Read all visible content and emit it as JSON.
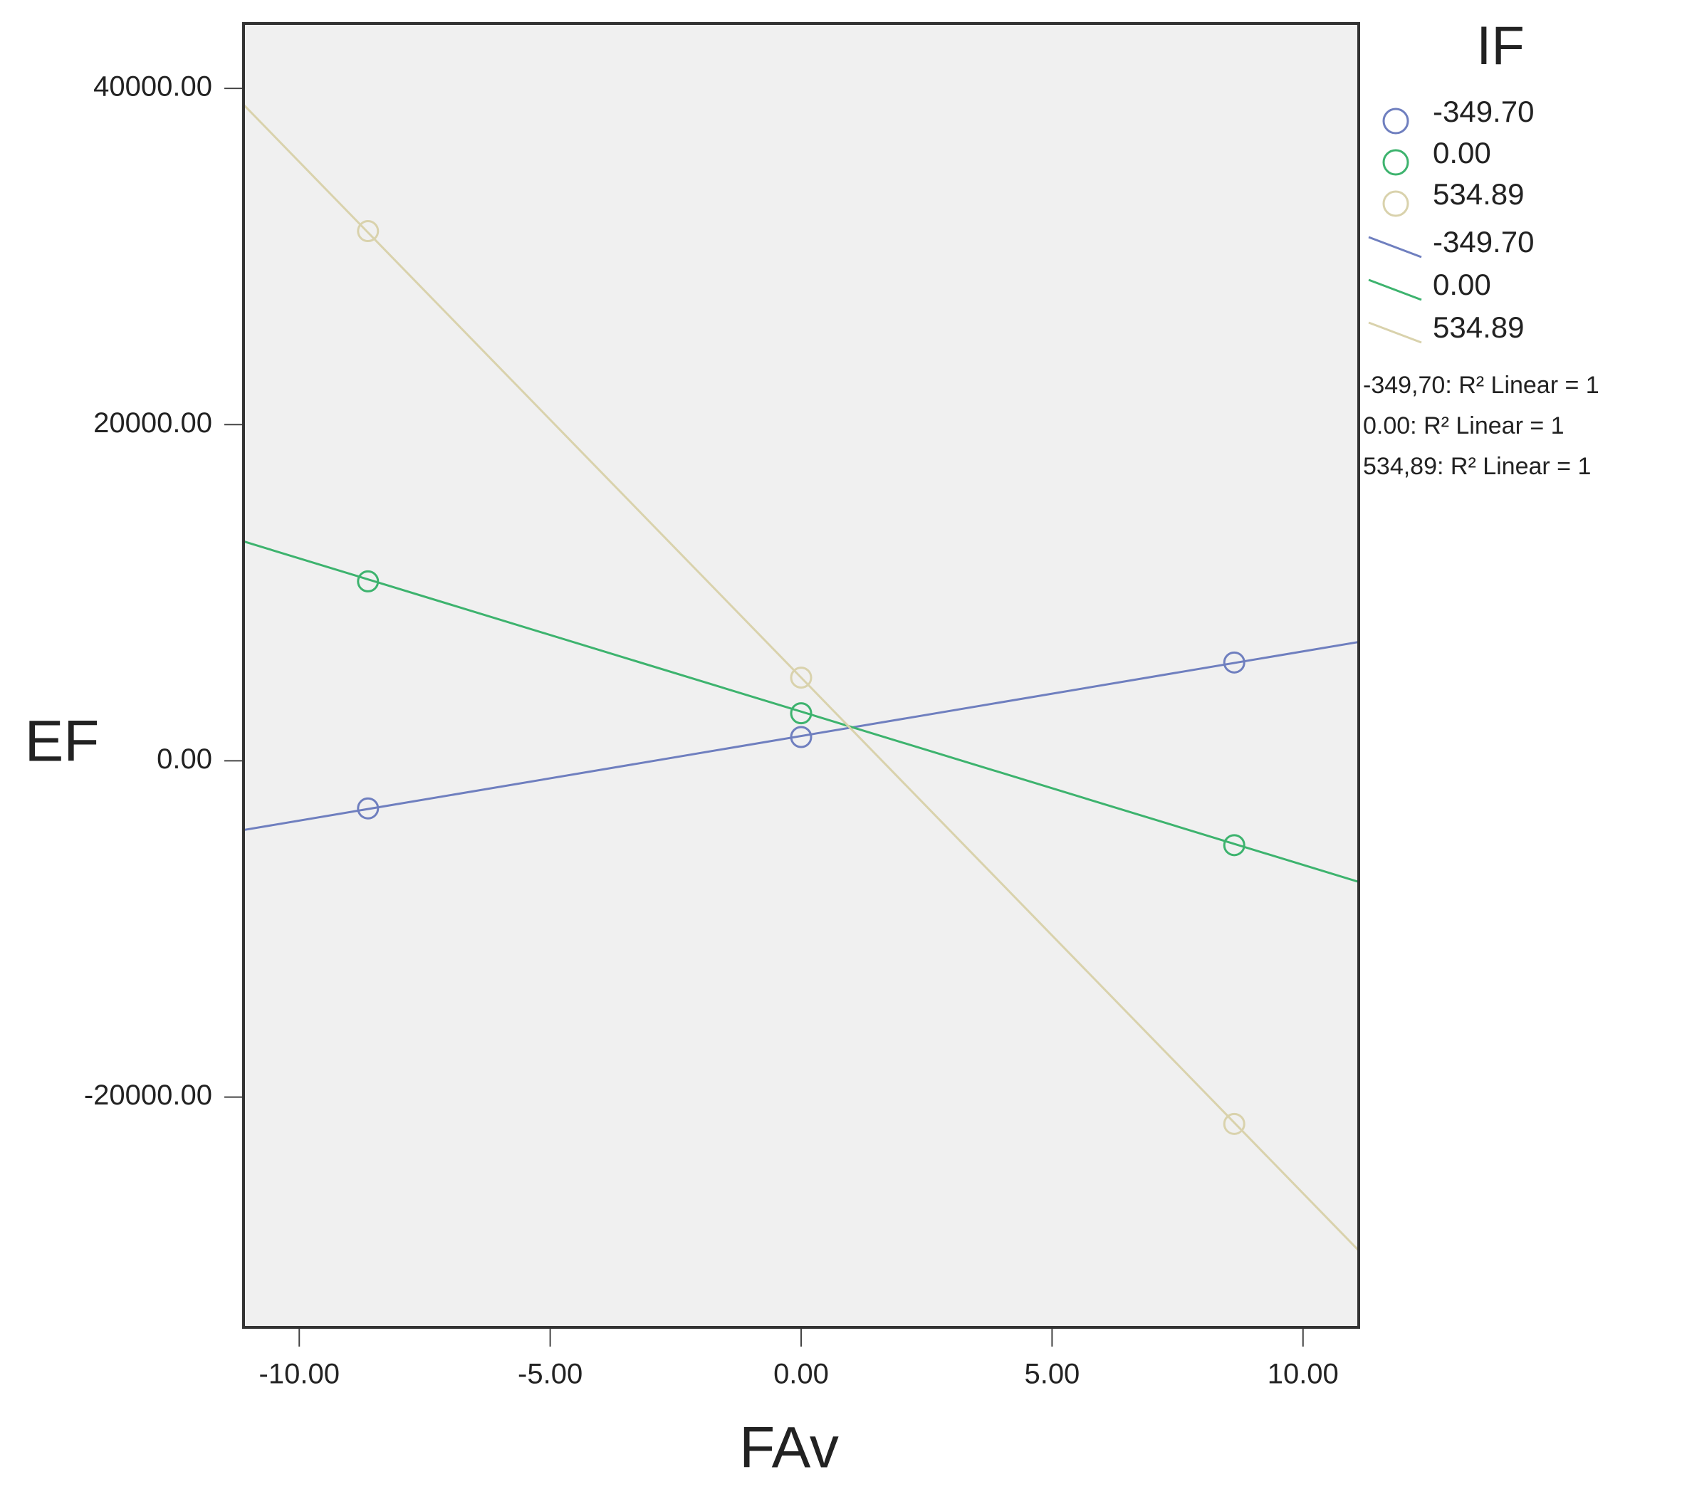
{
  "chart_data": {
    "type": "scatter",
    "x_label": "FAv",
    "y_label": "EF",
    "legend_title": "IF",
    "xlim": [
      -11.11,
      11.11
    ],
    "ylim": [
      -33700,
      43860
    ],
    "xticks": [
      {
        "value": -10,
        "label": "-10.00"
      },
      {
        "value": -5,
        "label": "-5.00"
      },
      {
        "value": 0,
        "label": "0.00"
      },
      {
        "value": 5,
        "label": "5.00"
      },
      {
        "value": 10,
        "label": "10.00"
      }
    ],
    "yticks": [
      {
        "value": -20000,
        "label": "-20000.00"
      },
      {
        "value": 0,
        "label": "0.00"
      },
      {
        "value": 20000,
        "label": "20000.00"
      },
      {
        "value": 40000,
        "label": "40000.00"
      }
    ],
    "background": "#f0f0f0",
    "series": [
      {
        "name": "-349.70",
        "color": "#6f7fbf",
        "x": [
          -8.63,
          0,
          8.63
        ],
        "values": [
          -2830,
          1415,
          5850
        ]
      },
      {
        "name": "0.00",
        "color": "#3db36e",
        "x": [
          -8.63,
          0,
          8.63
        ],
        "values": [
          10675,
          2830,
          -5016
        ]
      },
      {
        "name": "534.89",
        "color": "#d9d2ac",
        "x": [
          -8.63,
          0,
          8.63
        ],
        "values": [
          31510,
          4950,
          -21600
        ]
      }
    ],
    "fit_lines": [
      {
        "name": "-349.70",
        "color": "#6f7fbf",
        "x": [
          -11.11,
          11.11
        ],
        "values": [
          -4115,
          7070
        ]
      },
      {
        "name": "0.00",
        "color": "#3db36e",
        "x": [
          -11.11,
          11.11
        ],
        "values": [
          13055,
          -7200
        ]
      },
      {
        "name": "534.89",
        "color": "#d9d2ac",
        "x": [
          -11.11,
          11.11
        ],
        "values": [
          39035,
          -29130
        ]
      }
    ],
    "annotations": [
      "-349,70: R² Linear = 1",
      "0.00: R² Linear = 1",
      "534,89: R² Linear = 1"
    ]
  }
}
